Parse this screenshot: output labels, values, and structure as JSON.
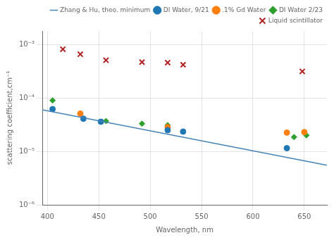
{
  "chart_data": {
    "type": "scatter",
    "xlabel": "Wavelength, nm",
    "ylabel": "scattering coefficient,cm⁻¹",
    "xlim": [
      395,
      672
    ],
    "ylim": [
      1e-06,
      0.0018
    ],
    "xticks": [
      400,
      450,
      500,
      550,
      600,
      650
    ],
    "yticks": [
      {
        "value": 1e-06,
        "label": "10⁻⁶"
      },
      {
        "value": 1e-05,
        "label": "10⁻⁵"
      },
      {
        "value": 0.0001,
        "label": "10⁻⁴"
      },
      {
        "value": 0.001,
        "label": "10⁻³"
      }
    ],
    "log": "y",
    "grid": true,
    "legend": "upper right",
    "series": [
      {
        "name": "Zhang & Hu, theo. minimum",
        "type": "line",
        "color": "#4682b4",
        "x": [
          395,
          672
        ],
        "values": [
          6e-05,
          5.5e-06
        ]
      },
      {
        "name": "DI Water, 9/21",
        "type": "scatter",
        "color": "#1f77b4",
        "marker": "circle",
        "x": [
          405,
          435,
          452,
          517,
          532,
          633
        ],
        "values": [
          6.2e-05,
          4.1e-05,
          3.6e-05,
          2.5e-05,
          2.35e-05,
          1.15e-05
        ]
      },
      {
        "name": ".1% Gd Water",
        "type": "scatter",
        "color": "#ff7f0e",
        "marker": "circle",
        "x": [
          432,
          517,
          633,
          650
        ],
        "values": [
          5.1e-05,
          2.85e-05,
          2.25e-05,
          2.3e-05
        ]
      },
      {
        "name": "DI Water 2/23",
        "type": "scatter",
        "color": "#2ca02c",
        "marker": "diamond",
        "x": [
          405,
          457,
          492,
          517,
          640,
          652
        ],
        "values": [
          9e-05,
          3.7e-05,
          3.3e-05,
          3.1e-05,
          1.85e-05,
          2e-05
        ]
      },
      {
        "name": "Liquid scintillator",
        "type": "scatter",
        "color": "#b22222",
        "marker": "x",
        "x": [
          415,
          432,
          457,
          492,
          517,
          532,
          648
        ],
        "values": [
          0.00082,
          0.00066,
          0.00051,
          0.00047,
          0.00046,
          0.00042,
          0.000315
        ]
      }
    ]
  }
}
